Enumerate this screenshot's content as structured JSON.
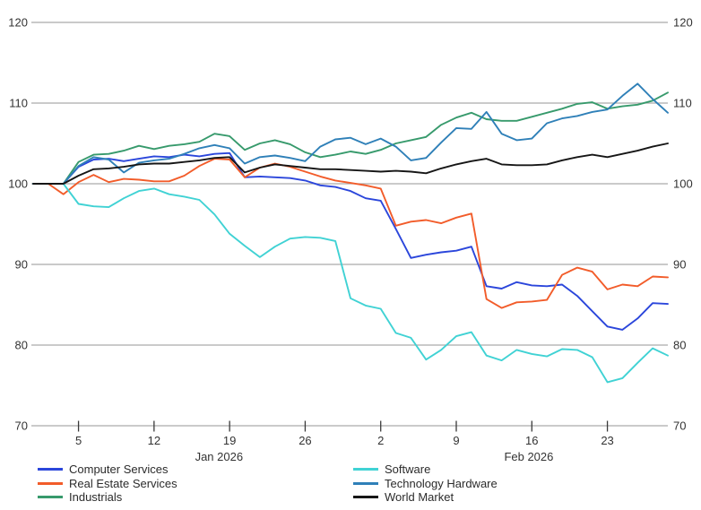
{
  "chart_data": {
    "type": "line",
    "title": "",
    "xlabel": "",
    "ylabel": "",
    "ylim": [
      70,
      120
    ],
    "yticks": [
      70,
      80,
      90,
      100,
      110,
      120
    ],
    "y_labels_sides": [
      "left",
      "right"
    ],
    "grid": "horizontal",
    "legend_position": "bottom",
    "x_dates": [
      "Dec 31",
      "Jan 1",
      "Jan 2",
      "Jan 5",
      "Jan 6",
      "Jan 7",
      "Jan 8",
      "Jan 9",
      "Jan 12",
      "Jan 13",
      "Jan 14",
      "Jan 15",
      "Jan 16",
      "Jan 19",
      "Jan 20",
      "Jan 21",
      "Jan 22",
      "Jan 23",
      "Jan 26",
      "Jan 27",
      "Jan 28",
      "Jan 29",
      "Jan 30",
      "Feb 2",
      "Feb 3",
      "Feb 4",
      "Feb 5",
      "Feb 6",
      "Feb 9",
      "Feb 10",
      "Feb 11",
      "Feb 12",
      "Feb 13",
      "Feb 16",
      "Feb 17",
      "Feb 18",
      "Feb 19",
      "Feb 20",
      "Feb 23",
      "Feb 24",
      "Feb 25",
      "Feb 26",
      "Feb 27"
    ],
    "x_axis": {
      "ticks": [
        {
          "index": 3,
          "label": "5"
        },
        {
          "index": 8,
          "label": "12"
        },
        {
          "index": 13,
          "label": "19"
        },
        {
          "index": 18,
          "label": "26"
        },
        {
          "index": 23,
          "label": "2"
        },
        {
          "index": 28,
          "label": "9"
        },
        {
          "index": 33,
          "label": "16"
        },
        {
          "index": 38,
          "label": "23"
        }
      ],
      "month_labels": [
        {
          "label": "Jan 2026",
          "at_index": 12.3
        },
        {
          "label": "Feb 2026",
          "at_index": 32.8
        }
      ]
    },
    "series": [
      {
        "name": "Computer Services",
        "color": "#2b46db",
        "values": [
          100,
          100,
          100,
          102.1,
          103.0,
          103.1,
          102.8,
          103.1,
          103.4,
          103.3,
          103.6,
          103.4,
          103.7,
          103.8,
          100.8,
          100.9,
          100.8,
          100.7,
          100.4,
          99.8,
          99.6,
          99.1,
          98.2,
          97.9,
          94.4,
          90.8,
          91.2,
          91.5,
          91.7,
          92.2,
          87.3,
          87.0,
          87.8,
          87.4,
          87.3,
          87.5,
          86.1,
          84.2,
          82.3,
          81.9,
          83.3,
          85.2,
          85.1
        ]
      },
      {
        "name": "Real Estate Services",
        "color": "#f25c2a",
        "values": [
          100,
          100,
          98.7,
          100.2,
          101.1,
          100.2,
          100.6,
          100.5,
          100.3,
          100.3,
          101.0,
          102.2,
          103.1,
          103.0,
          100.8,
          102.0,
          102.5,
          102.1,
          101.5,
          100.9,
          100.4,
          100.1,
          99.8,
          99.4,
          94.8,
          95.3,
          95.5,
          95.1,
          95.8,
          96.3,
          85.7,
          84.6,
          85.3,
          85.4,
          85.6,
          88.7,
          89.6,
          89.1,
          86.9,
          87.5,
          87.3,
          88.5,
          88.4
        ]
      },
      {
        "name": "Industrials",
        "color": "#379a6c",
        "values": [
          100,
          100,
          100,
          102.7,
          103.6,
          103.7,
          104.1,
          104.7,
          104.3,
          104.7,
          104.9,
          105.2,
          106.2,
          105.9,
          104.2,
          105.0,
          105.4,
          104.9,
          103.9,
          103.3,
          103.6,
          104.0,
          103.7,
          104.2,
          105.0,
          105.4,
          105.8,
          107.3,
          108.2,
          108.8,
          108.0,
          107.8,
          107.8,
          108.3,
          108.8,
          109.3,
          109.9,
          110.1,
          109.3,
          109.6,
          109.8,
          110.3,
          111.3
        ]
      },
      {
        "name": "Software",
        "color": "#40d2d4",
        "values": [
          100,
          100,
          100,
          97.5,
          97.2,
          97.1,
          98.2,
          99.1,
          99.4,
          98.7,
          98.4,
          98.0,
          96.2,
          93.8,
          92.3,
          90.9,
          92.2,
          93.2,
          93.4,
          93.3,
          92.9,
          85.8,
          84.9,
          84.5,
          81.5,
          80.9,
          78.2,
          79.4,
          81.1,
          81.6,
          78.7,
          78.1,
          79.4,
          78.9,
          78.6,
          79.5,
          79.4,
          78.5,
          75.4,
          75.9,
          77.8,
          79.6,
          78.7
        ]
      },
      {
        "name": "Technology Hardware",
        "color": "#2f80b8",
        "values": [
          100,
          100,
          100,
          102.2,
          103.3,
          103.0,
          101.4,
          102.6,
          102.9,
          103.1,
          103.7,
          104.4,
          104.8,
          104.4,
          102.5,
          103.3,
          103.5,
          103.2,
          102.8,
          104.6,
          105.5,
          105.7,
          104.9,
          105.6,
          104.6,
          102.9,
          103.2,
          105.1,
          106.9,
          106.8,
          108.9,
          106.2,
          105.4,
          105.6,
          107.5,
          108.1,
          108.4,
          108.9,
          109.2,
          110.9,
          112.4,
          110.5,
          108.8
        ]
      },
      {
        "name": "World Market",
        "color": "#161616",
        "values": [
          100,
          100,
          100,
          101.0,
          101.8,
          101.9,
          102.1,
          102.4,
          102.5,
          102.5,
          102.7,
          102.9,
          103.2,
          103.3,
          101.4,
          102.0,
          102.4,
          102.2,
          102.0,
          101.8,
          101.8,
          101.7,
          101.6,
          101.5,
          101.6,
          101.5,
          101.3,
          101.9,
          102.4,
          102.8,
          103.1,
          102.4,
          102.3,
          102.3,
          102.4,
          102.9,
          103.3,
          103.6,
          103.3,
          103.7,
          104.1,
          104.6,
          105.0
        ]
      }
    ],
    "colors": {
      "background": "#ffffff",
      "grid": "#ababab",
      "tick": "#3a3a3a",
      "text": "#333333"
    }
  }
}
